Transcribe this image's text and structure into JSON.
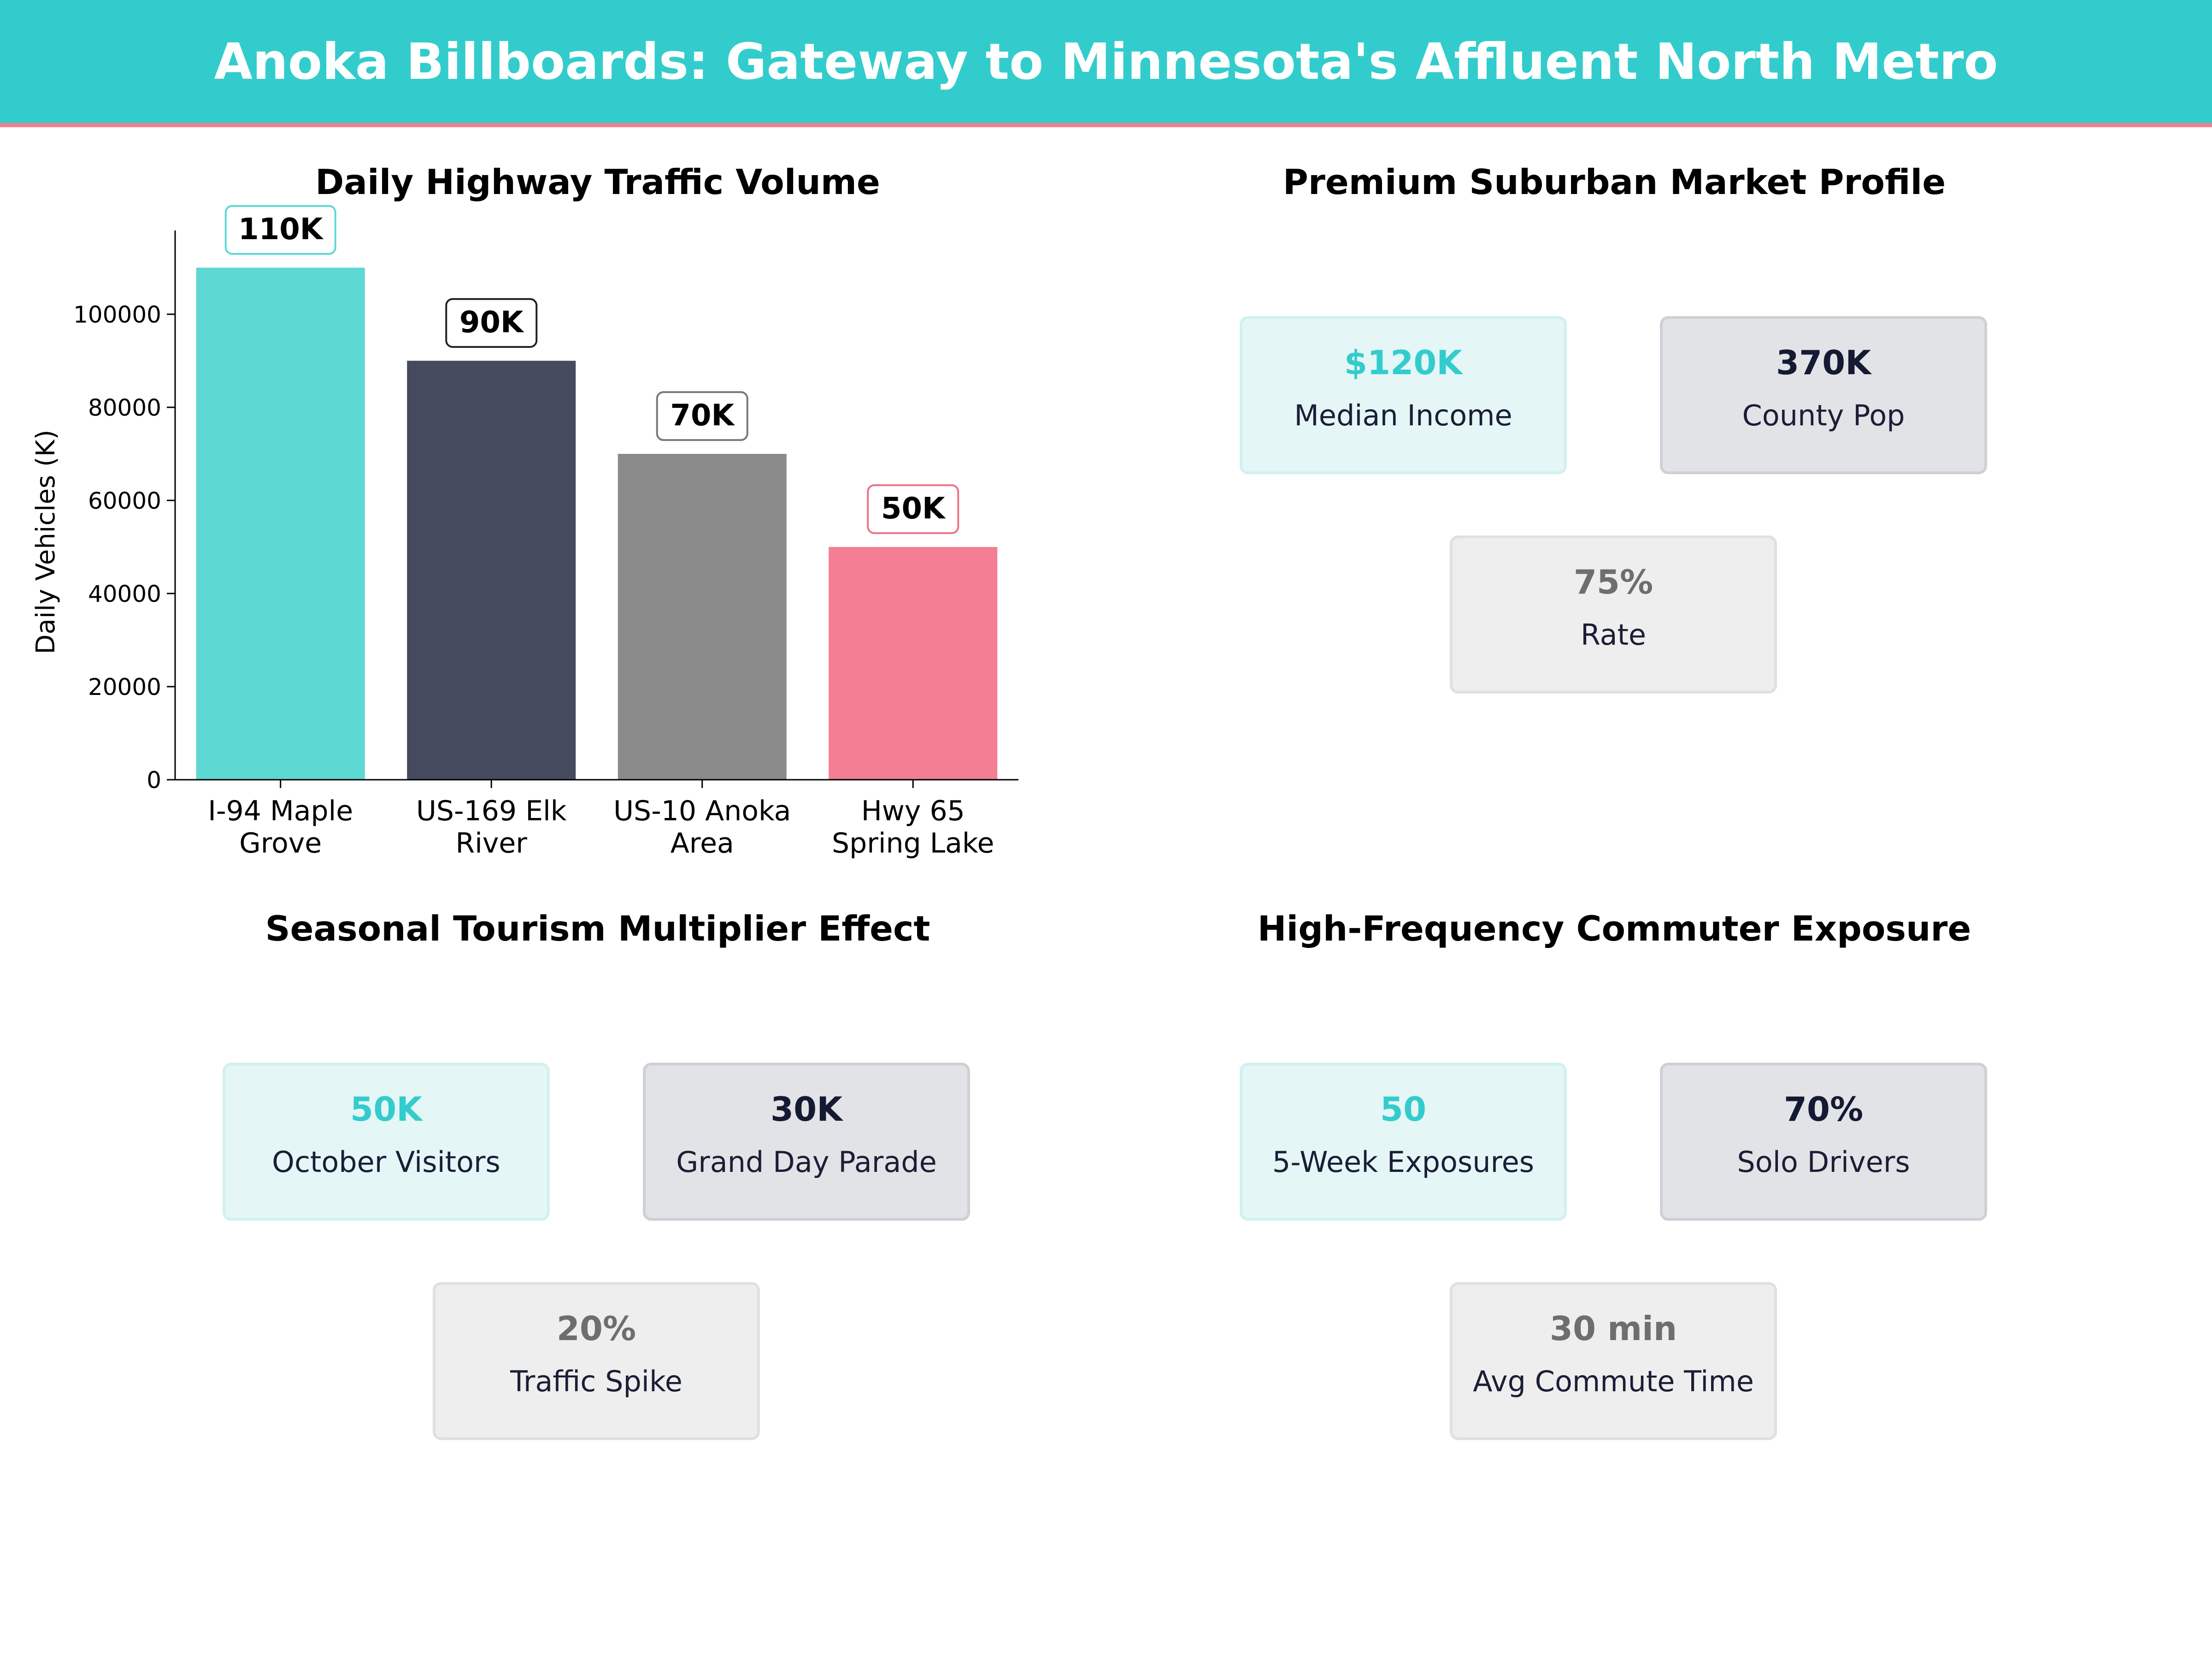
{
  "header": {
    "title": "Anoka Billboards: Gateway to Minnesota's Affluent North Metro"
  },
  "chart_data": {
    "type": "bar",
    "title": "Daily Highway Traffic Volume",
    "ylabel": "Daily Vehicles (K)",
    "xlabel": "",
    "categories": [
      "I-94 Maple Grove",
      "US-169 Elk River",
      "US-10 Anoka Area",
      "Hwy 65 Spring Lake"
    ],
    "category_lines": [
      [
        "I-94 Maple",
        "Grove"
      ],
      [
        "US-169 Elk",
        "River"
      ],
      [
        "US-10 Anoka",
        "Area"
      ],
      [
        "Hwy 65",
        "Spring Lake"
      ]
    ],
    "values": [
      110000,
      90000,
      70000,
      50000
    ],
    "data_labels": [
      "110K",
      "90K",
      "70K",
      "50K"
    ],
    "bar_colors": [
      "#5dd8d3",
      "#464a5f",
      "#8a8a8a",
      "#f47e93"
    ],
    "label_border_colors": [
      "#5dd8d3",
      "#222222",
      "#777777",
      "#f07088"
    ],
    "ylim": [
      0,
      118000
    ],
    "yticks": [
      0,
      20000,
      40000,
      60000,
      80000,
      100000
    ],
    "grid": false
  },
  "panels": {
    "market": {
      "title": "Premium Suburban Market Profile",
      "cards": [
        {
          "value": "$120K",
          "label": "Median Income"
        },
        {
          "value": "370K",
          "label": "County Pop"
        },
        {
          "value": "75%",
          "label": "Rate"
        }
      ]
    },
    "tourism": {
      "title": "Seasonal Tourism Multiplier Effect",
      "cards": [
        {
          "value": "50K",
          "label": "October Visitors"
        },
        {
          "value": "30K",
          "label": "Grand Day Parade"
        },
        {
          "value": "20%",
          "label": "Traffic Spike"
        }
      ]
    },
    "commuter": {
      "title": "High-Frequency Commuter Exposure",
      "cards": [
        {
          "value": "50",
          "label": "5-Week Exposures"
        },
        {
          "value": "70%",
          "label": "Solo Drivers"
        },
        {
          "value": "30 min",
          "label": "Avg Commute Time"
        }
      ]
    }
  }
}
